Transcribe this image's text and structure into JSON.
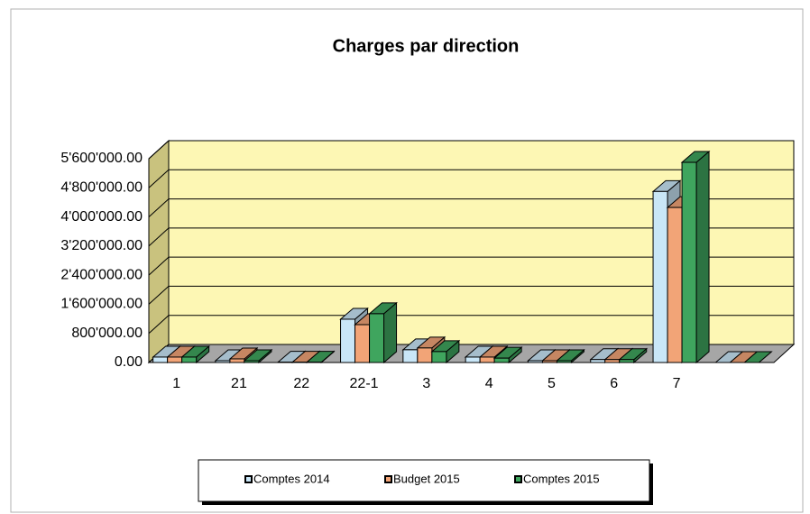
{
  "chart_data": {
    "type": "bar3d",
    "title": "Charges par direction",
    "categories": [
      "1",
      "21",
      "22",
      "22-1",
      "3",
      "4",
      "5",
      "6",
      "7",
      null
    ],
    "series": [
      {
        "name": "Comptes 2014",
        "color": "#c9e6f7",
        "values": [
          150000,
          50000,
          10000,
          1190000,
          350000,
          150000,
          50000,
          80000,
          4700000,
          0
        ]
      },
      {
        "name": "Budget 2015",
        "color": "#f2a477",
        "values": [
          150000,
          100000,
          10000,
          1040000,
          400000,
          150000,
          50000,
          80000,
          4260000,
          0
        ]
      },
      {
        "name": "Comptes 2015",
        "color": "#3fa55e",
        "values": [
          150000,
          50000,
          10000,
          1340000,
          300000,
          120000,
          50000,
          80000,
          5500000,
          0
        ]
      }
    ],
    "ylim": [
      0,
      5600000
    ],
    "yticks": [
      {
        "value": 0,
        "label": "0.00"
      },
      {
        "value": 800000,
        "label": "800'000.00"
      },
      {
        "value": 1600000,
        "label": "1'600'000.00"
      },
      {
        "value": 2400000,
        "label": "2'400'000.00"
      },
      {
        "value": 3200000,
        "label": "3'200'000.00"
      },
      {
        "value": 4000000,
        "label": "4'000'000.00"
      },
      {
        "value": 4800000,
        "label": "4'800'000.00"
      },
      {
        "value": 5600000,
        "label": "5'600'000.00"
      }
    ],
    "grid": true,
    "legend": "bottom"
  }
}
